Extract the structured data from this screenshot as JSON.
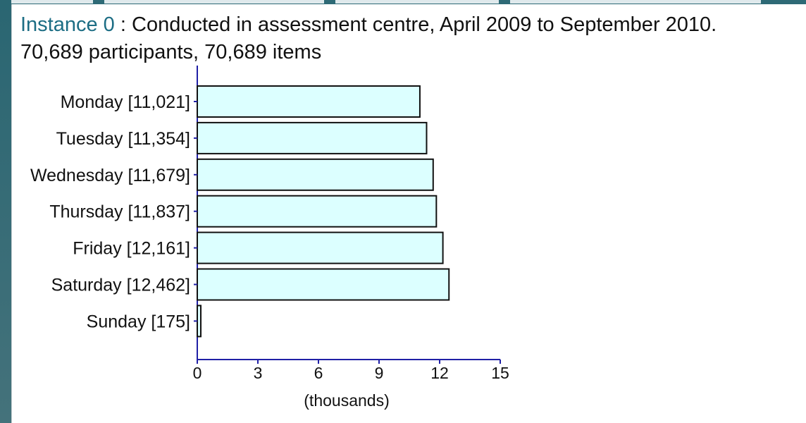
{
  "header": {
    "instance_link": "Instance 0",
    "title_rest": " : Conducted in assessment centre, April 2009 to September 2010.",
    "subtitle": "70,689 participants, 70,689 items"
  },
  "colors": {
    "bar_fill": "#dcffff",
    "bar_stroke": "#111111",
    "axis": "#1f1fa6",
    "link": "#1c6d84"
  },
  "chart_data": {
    "type": "bar",
    "orientation": "horizontal",
    "categories": [
      "Monday [11,021]",
      "Tuesday [11,354]",
      "Wednesday [11,679]",
      "Thursday [11,837]",
      "Friday [12,161]",
      "Saturday [12,462]",
      "Sunday [175]"
    ],
    "values": [
      11021,
      11354,
      11679,
      11837,
      12161,
      12462,
      175
    ],
    "x_ticks": [
      "0",
      "3",
      "6",
      "9",
      "12",
      "15"
    ],
    "xlim": [
      0,
      15000
    ],
    "xlabel": "(thousands)",
    "grid": false
  }
}
